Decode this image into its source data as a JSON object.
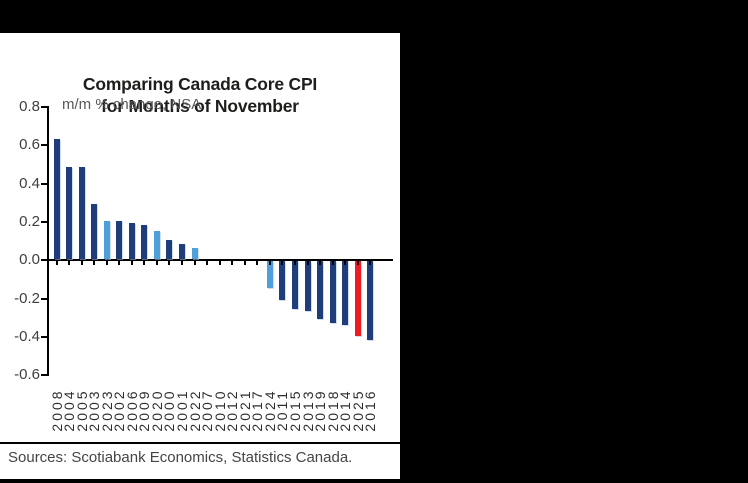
{
  "chart": {
    "title_lines": [
      "Comparing Canada Core CPI",
      "for Months of November"
    ],
    "subtitle": "m/m % change, NSA",
    "sources": "Sources: Scotiabank Economics, Statistics Canada."
  },
  "chart_data": {
    "type": "bar",
    "title": "Comparing Canada Core CPI for Months of November",
    "subtitle": "m/m % change, NSA",
    "xlabel": "",
    "ylabel": "m/m % change, NSA",
    "ylim": [
      -0.6,
      0.8
    ],
    "y_tick_step": 0.2,
    "y_tick_labels": [
      "0.8",
      "0.6",
      "0.4",
      "0.2",
      "0.0",
      "-0.2",
      "-0.4",
      "-0.6"
    ],
    "sorted": "descending",
    "grid": false,
    "legend": "none",
    "categories": [
      "2008",
      "2004",
      "2005",
      "2003",
      "2023",
      "2002",
      "2006",
      "2009",
      "2020",
      "2000",
      "2001",
      "2022",
      "2007",
      "2010",
      "2012",
      "2021",
      "2017",
      "2024",
      "2011",
      "2015",
      "2013",
      "2019",
      "2018",
      "2014",
      "2025",
      "2016"
    ],
    "values": [
      0.63,
      0.48,
      0.48,
      0.29,
      0.2,
      0.2,
      0.19,
      0.18,
      0.15,
      0.1,
      0.08,
      0.06,
      0.0,
      0.0,
      0.0,
      0.0,
      0.0,
      -0.14,
      -0.2,
      -0.25,
      -0.26,
      -0.3,
      -0.32,
      -0.33,
      -0.39,
      -0.41
    ],
    "bar_color_keys": [
      "navy",
      "navy",
      "navy",
      "navy",
      "lightblue",
      "navy",
      "navy",
      "navy",
      "lightblue",
      "navy",
      "navy",
      "lightblue",
      "navy",
      "navy",
      "navy",
      "lightblue",
      "navy",
      "lightblue",
      "navy",
      "navy",
      "navy",
      "navy",
      "navy",
      "navy",
      "red",
      "navy"
    ],
    "colors": {
      "navy": "#1f3d7a",
      "lightblue": "#4f9fd8",
      "red": "#ed1c24"
    }
  }
}
